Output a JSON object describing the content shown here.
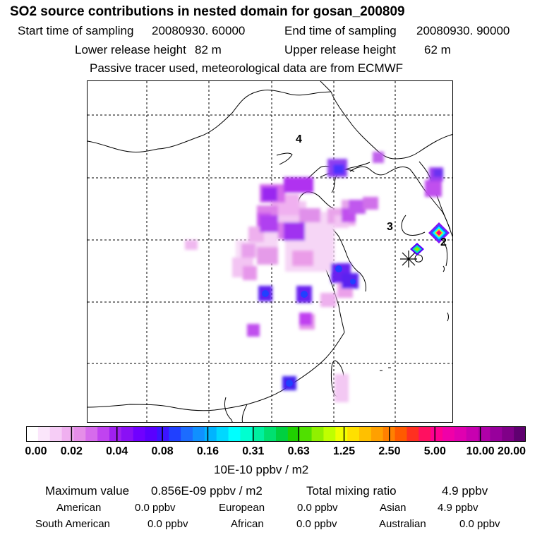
{
  "title": "SO2 source contributions in nested domain for gosan_200809",
  "header": {
    "start_label": "Start time of sampling",
    "start_value": "20080930. 60000",
    "end_label": "End time of sampling",
    "end_value": "20080930. 90000",
    "lower_label": "Lower release height",
    "lower_value": "82 m",
    "upper_label": "Upper release height",
    "upper_value": "62 m",
    "tracer_note": "Passive tracer used, meteorological data are from ECMWF"
  },
  "map": {
    "region_labels": [
      "4",
      "3",
      "2"
    ],
    "receptor_marker": "asterisk-icon"
  },
  "colorbar": {
    "ticks": [
      "0.00",
      "0.02",
      "0.04",
      "0.08",
      "0.16",
      "0.31",
      "0.63",
      "1.25",
      "2.50",
      "5.00",
      "10.00",
      "20.00"
    ],
    "unit_label": "10E-10 ppbv / m2",
    "colors": [
      "#ffffff",
      "#fbe6fb",
      "#f6cdf6",
      "#f0b0f0",
      "#e58ee8",
      "#d66bec",
      "#c043f0",
      "#a020f0",
      "#8a10f5",
      "#7000ff",
      "#5a00ff",
      "#3c14ff",
      "#2040ff",
      "#1c6cff",
      "#1090ff",
      "#00b4ff",
      "#00d8ff",
      "#00ffff",
      "#00ffd0",
      "#00f0a0",
      "#00e070",
      "#00d040",
      "#20d000",
      "#50e000",
      "#90f000",
      "#c0ff00",
      "#f0ff00",
      "#ffe000",
      "#ffc000",
      "#ffa000",
      "#ff8000",
      "#ff5a00",
      "#ff3020",
      "#ff1060",
      "#ff0090",
      "#f000a8",
      "#e000b0",
      "#c800b0",
      "#b000a8",
      "#98009c",
      "#800088",
      "#600070"
    ]
  },
  "stats": {
    "max_label": "Maximum value",
    "max_value": "0.856E-09 ppbv / m2",
    "total_label": "Total mixing ratio",
    "total_value": "4.9 ppbv",
    "rows": [
      [
        {
          "name": "American",
          "value": "0.0 ppbv"
        },
        {
          "name": "European",
          "value": "0.0 ppbv"
        },
        {
          "name": "Asian",
          "value": "4.9 ppbv"
        }
      ],
      [
        {
          "name": "South American",
          "value": "0.0 ppbv"
        },
        {
          "name": "African",
          "value": "0.0 ppbv"
        },
        {
          "name": "Australian",
          "value": "0.0 ppbv"
        }
      ]
    ]
  }
}
